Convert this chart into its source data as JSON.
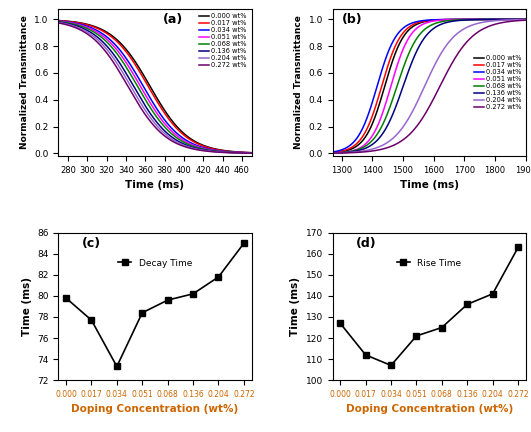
{
  "labels": [
    "0.000 wt%",
    "0.017 wt%",
    "0.034 wt%",
    "0.051 wt%",
    "0.068 wt%",
    "0.136 wt%",
    "0.204 wt%",
    "0.272 wt%"
  ],
  "colors_a": [
    "black",
    "red",
    "blue",
    "magenta",
    "green",
    "navy",
    "#9966cc",
    "#6b006b"
  ],
  "colors_b": [
    "black",
    "red",
    "blue",
    "magenta",
    "green",
    "navy",
    "#9966cc",
    "#6b006b"
  ],
  "panel_a": {
    "label": "(a)",
    "xlabel": "Time (ms)",
    "ylabel": "Normalized Transmittance",
    "xlim": [
      270,
      470
    ],
    "ylim": [
      -0.02,
      1.08
    ],
    "xticks": [
      280,
      300,
      320,
      340,
      360,
      380,
      400,
      420,
      440,
      460
    ],
    "midpoints": [
      365,
      363,
      358,
      355,
      352,
      348,
      345,
      342
    ],
    "widths": [
      20,
      20,
      20,
      20,
      20,
      20,
      20,
      20
    ]
  },
  "panel_b": {
    "label": "(b)",
    "xlabel": "Time (ms)",
    "ylabel": "Normalized Transmittance",
    "xlim": [
      1270,
      1900
    ],
    "ylim": [
      -0.02,
      1.08
    ],
    "xticks": [
      1300,
      1400,
      1500,
      1600,
      1700,
      1800,
      1900
    ],
    "midpoints": [
      1440,
      1430,
      1415,
      1460,
      1480,
      1500,
      1570,
      1620
    ],
    "widths": [
      32,
      32,
      32,
      32,
      36,
      38,
      50,
      55
    ]
  },
  "panel_c": {
    "label": "(c)",
    "xlabel": "Doping Concentration (wt%)",
    "ylabel": "Time (ms)",
    "xlim_labels": [
      "0.000",
      "0.017",
      "0.034",
      "0.051",
      "0.068",
      "0.136",
      "0.204",
      "0.272"
    ],
    "ylim": [
      72,
      86
    ],
    "yticks": [
      72,
      74,
      76,
      78,
      80,
      82,
      84,
      86
    ],
    "values": [
      79.8,
      77.7,
      73.3,
      78.4,
      79.6,
      80.2,
      81.8,
      85.0
    ],
    "legend": "Decay Time"
  },
  "panel_d": {
    "label": "(d)",
    "xlabel": "Doping Concentration (wt%)",
    "ylabel": "Time (ms)",
    "xlim_labels": [
      "0.000",
      "0.017",
      "0.034",
      "0.051",
      "0.068",
      "0.136",
      "0.204",
      "0.272"
    ],
    "ylim": [
      100,
      170
    ],
    "yticks": [
      100,
      110,
      120,
      130,
      140,
      150,
      160,
      170
    ],
    "values": [
      127,
      112,
      107,
      121,
      125,
      136,
      141,
      163
    ],
    "legend": "Rise Time"
  },
  "label_color": "black",
  "xlabel_color_bottom": "#cc6600",
  "ylabel_color_bottom": "#cc6600",
  "background_color": "white"
}
